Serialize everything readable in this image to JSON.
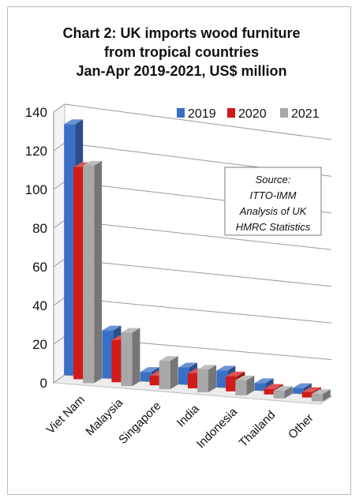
{
  "chart_data": {
    "type": "bar",
    "title_lines": [
      "Chart 2: UK imports wood furniture",
      "from tropical countries",
      "Jan-Apr 2019-2021, US$ million"
    ],
    "categories": [
      "Viet Nam",
      "Malaysia",
      "Singapore",
      "India",
      "Indonesia",
      "Thailand",
      "Other"
    ],
    "series": [
      {
        "name": "2019",
        "color": "#3a6fc6",
        "values": [
          130,
          25,
          5,
          9,
          9,
          4,
          3
        ]
      },
      {
        "name": "2020",
        "color": "#d11a1a",
        "values": [
          110,
          22,
          5,
          8,
          8,
          3,
          3
        ]
      },
      {
        "name": "2021",
        "color": "#a8a8a8",
        "values": [
          113,
          28,
          15,
          12,
          8,
          4,
          4
        ]
      }
    ],
    "yticks": [
      "0",
      "20",
      "40",
      "60",
      "80",
      "100",
      "120",
      "140"
    ],
    "ylim": [
      0,
      140
    ],
    "grid": true,
    "legend": "top-right",
    "annotation_lines": [
      "Source:",
      "ITTO-IMM",
      "Analysis of UK",
      "HMRC Statistics"
    ]
  }
}
